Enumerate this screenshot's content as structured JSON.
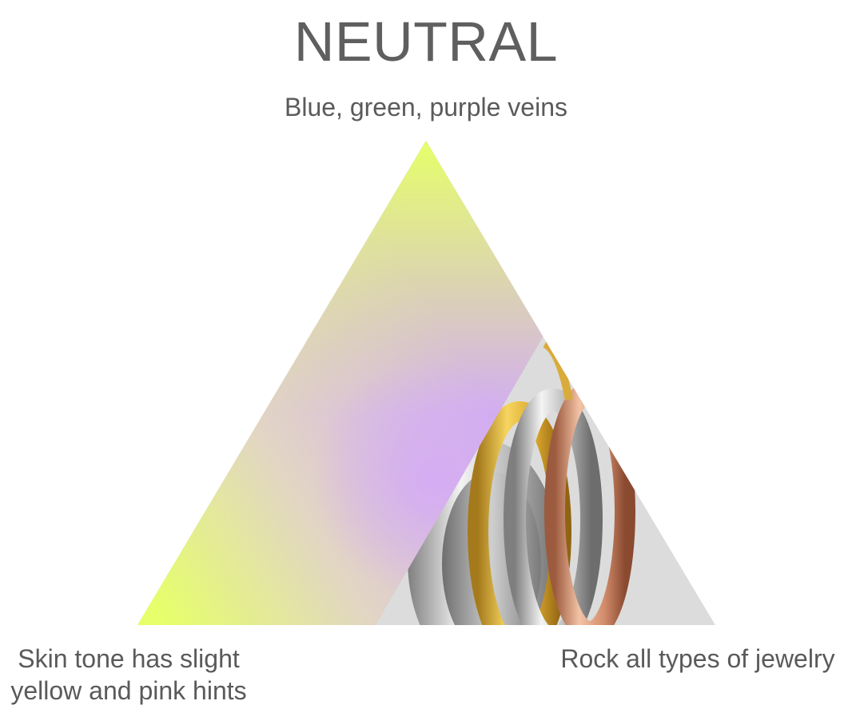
{
  "title": "NEUTRAL",
  "labels": {
    "top": "Blue, green, purple veins",
    "bottom_left_line1": "Skin tone has slight",
    "bottom_left_line2": "yellow and pink hints",
    "bottom_right": "Rock all types of jewelry"
  },
  "colors": {
    "text": "#5a5a5a",
    "gradient_yellow": "#e6ff6a",
    "gradient_purple": "#d2adf2",
    "gradient_beige": "#e2d6c3",
    "ring_gold": "#e3b83c",
    "ring_silver": "#c9c9c9",
    "ring_rose_gold": "#dca182",
    "photo_background": "#dddddd"
  },
  "image": {
    "subject": "stacked gold, silver and rose gold rings"
  }
}
